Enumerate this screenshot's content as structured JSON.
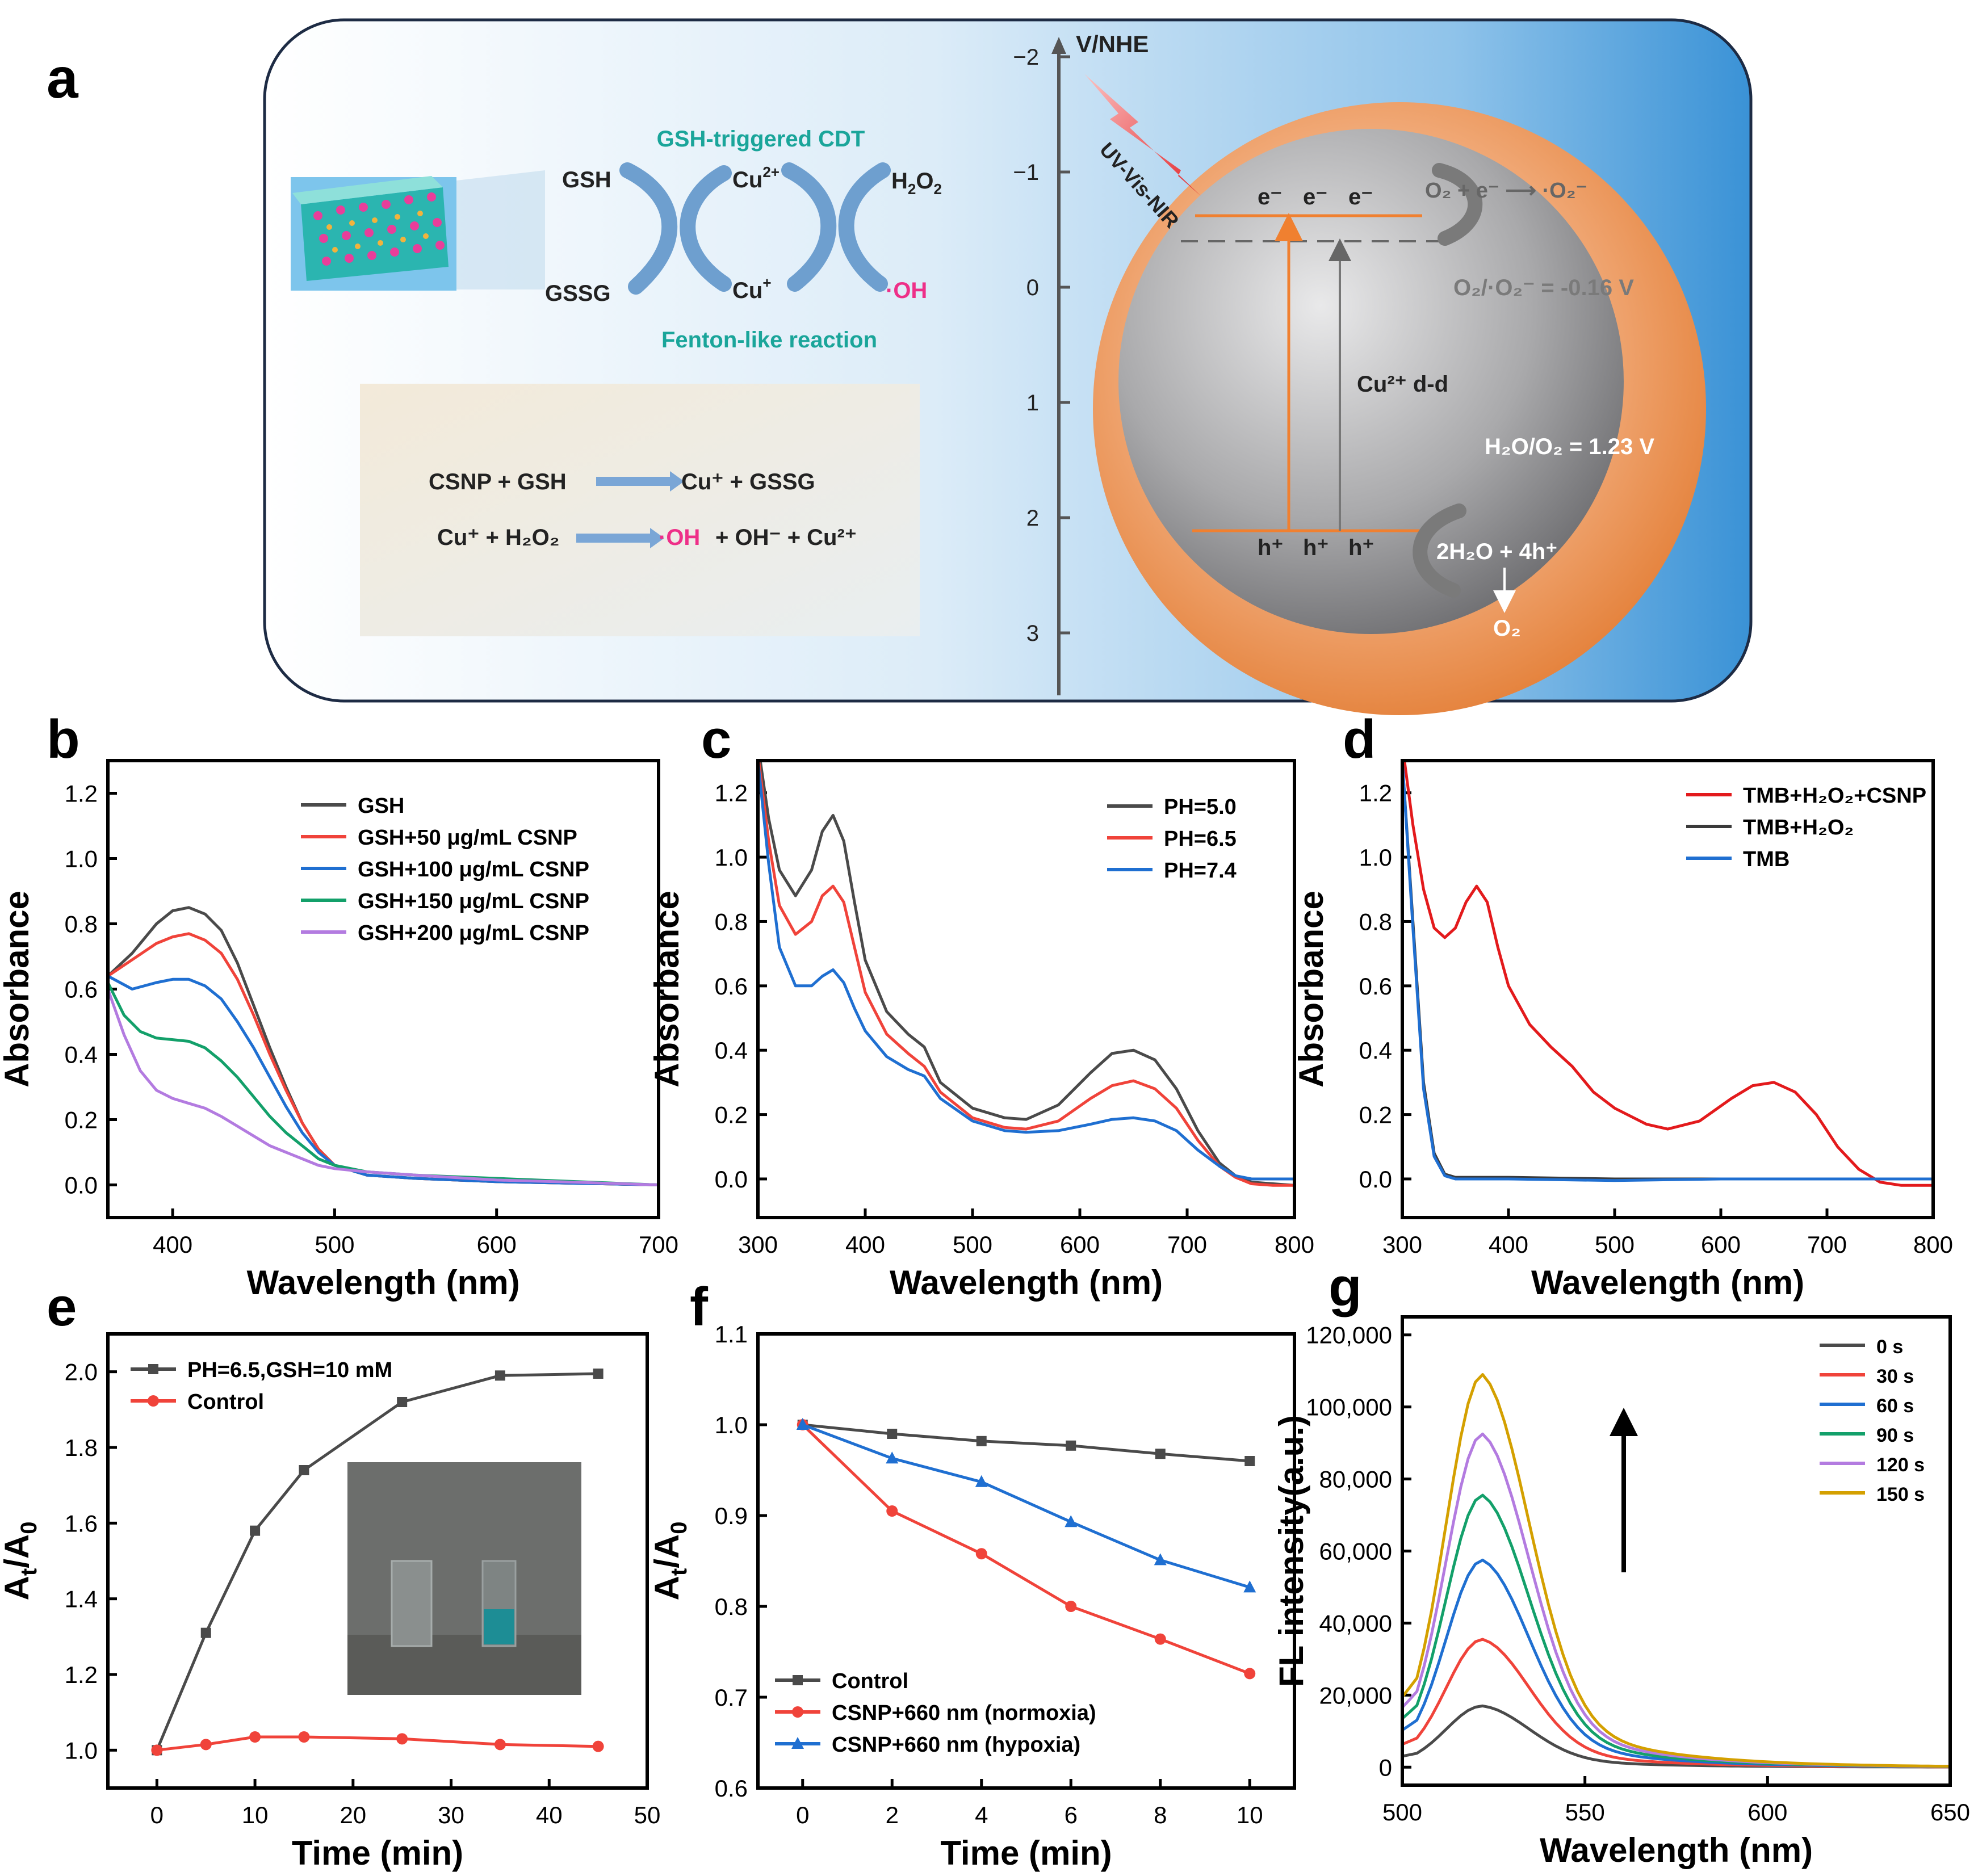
{
  "panel_a": {
    "label": "a",
    "cycle": {
      "title": "GSH-triggered CDT",
      "subtitle": "Fenton-like reaction",
      "gsh": "GSH",
      "gssg": "GSSG",
      "cu2": "Cu",
      "cu2_sup": "2+",
      "cu1": "Cu",
      "cu1_sup": "+",
      "h2o2_main": "H",
      "h2o2_sub": "2",
      "h2o2_o": "O",
      "h2o2_sub2": "2",
      "oh": "·OH"
    },
    "equations": {
      "eq1_left": "CSNP + GSH",
      "eq1_right": "Cu⁺ + GSSG",
      "eq2_left": "Cu⁺ + H₂O₂",
      "eq2_oh": "·OH",
      "eq2_right": " + OH⁻ + Cu²⁺"
    },
    "energy": {
      "axis_title": "V/NHE",
      "ticks": [
        "-2",
        "-1",
        "0",
        "1",
        "2",
        "3"
      ],
      "light": "UV-Vis-NIR",
      "electrons": [
        "e⁻",
        "e⁻",
        "e⁻"
      ],
      "holes": [
        "h⁺",
        "h⁺",
        "h⁺"
      ],
      "transition": "Cu²⁺ d-d",
      "reduction": "O₂ + e⁻ ⟶ ·O₂⁻",
      "o2_level": "O₂/·O₂⁻ = -0.16 V",
      "h2o_level": "H₂O/O₂ = 1.23 V",
      "oxidation": "2H₂O + 4h⁺",
      "o2": "O₂"
    }
  },
  "chart_data": [
    {
      "id": "b",
      "type": "line",
      "label": "b",
      "xlabel": "Wavelength (nm)",
      "ylabel": "Absorbance",
      "xlim": [
        360,
        700
      ],
      "ylim": [
        -0.1,
        1.3
      ],
      "xticks": [
        400,
        500,
        600,
        700
      ],
      "yticks": [
        0.0,
        0.2,
        0.4,
        0.6,
        0.8,
        1.0,
        1.2
      ],
      "ytick_labels": [
        "0.0",
        "0.2",
        "0.4",
        "0.6",
        "0.8",
        "1.0",
        "1.2"
      ],
      "legend_position": "top-right",
      "series": [
        {
          "name": "GSH",
          "color": "#4a4a4a",
          "x": [
            360,
            375,
            390,
            400,
            410,
            420,
            430,
            440,
            450,
            460,
            470,
            480,
            490,
            500,
            520,
            550,
            600,
            650,
            700
          ],
          "y": [
            0.64,
            0.71,
            0.8,
            0.84,
            0.85,
            0.83,
            0.78,
            0.68,
            0.55,
            0.42,
            0.3,
            0.19,
            0.11,
            0.06,
            0.03,
            0.02,
            0.01,
            0.005,
            0.0
          ]
        },
        {
          "name": "GSH+50 μg/mL CSNP",
          "color": "#f0433a",
          "x": [
            360,
            375,
            390,
            400,
            410,
            420,
            430,
            440,
            450,
            460,
            470,
            480,
            490,
            500,
            520,
            550,
            600,
            650,
            700
          ],
          "y": [
            0.64,
            0.69,
            0.74,
            0.76,
            0.77,
            0.75,
            0.71,
            0.63,
            0.52,
            0.4,
            0.29,
            0.19,
            0.11,
            0.06,
            0.03,
            0.02,
            0.01,
            0.005,
            0.0
          ]
        },
        {
          "name": "GSH+100 μg/mL CSNP",
          "color": "#1f6fd1",
          "x": [
            360,
            375,
            390,
            400,
            410,
            420,
            430,
            440,
            450,
            460,
            470,
            480,
            490,
            500,
            520,
            550,
            600,
            650,
            700
          ],
          "y": [
            0.64,
            0.6,
            0.62,
            0.63,
            0.63,
            0.61,
            0.57,
            0.5,
            0.42,
            0.33,
            0.24,
            0.16,
            0.1,
            0.06,
            0.03,
            0.02,
            0.01,
            0.005,
            0.0
          ]
        },
        {
          "name": "GSH+150 μg/mL CSNP",
          "color": "#13a06a",
          "x": [
            360,
            370,
            380,
            390,
            400,
            410,
            420,
            430,
            440,
            450,
            460,
            470,
            480,
            490,
            500,
            520,
            550,
            600,
            650,
            700
          ],
          "y": [
            0.62,
            0.52,
            0.47,
            0.45,
            0.445,
            0.44,
            0.42,
            0.38,
            0.33,
            0.27,
            0.21,
            0.16,
            0.12,
            0.08,
            0.06,
            0.04,
            0.03,
            0.02,
            0.01,
            0.0
          ]
        },
        {
          "name": "GSH+200 μg/mL CSNP",
          "color": "#b37be0",
          "x": [
            360,
            370,
            380,
            390,
            400,
            410,
            420,
            430,
            440,
            450,
            460,
            470,
            480,
            490,
            500,
            520,
            550,
            600,
            650,
            700
          ],
          "y": [
            0.6,
            0.46,
            0.35,
            0.29,
            0.265,
            0.25,
            0.235,
            0.21,
            0.18,
            0.15,
            0.12,
            0.1,
            0.08,
            0.06,
            0.05,
            0.04,
            0.03,
            0.015,
            0.008,
            0.0
          ]
        }
      ]
    },
    {
      "id": "c",
      "type": "line",
      "label": "c",
      "xlabel": "Wavelength (nm)",
      "ylabel": "Absorbance",
      "xlim": [
        300,
        800
      ],
      "ylim": [
        -0.12,
        1.3
      ],
      "xticks": [
        300,
        400,
        500,
        600,
        700,
        800
      ],
      "yticks": [
        0.0,
        0.2,
        0.4,
        0.6,
        0.8,
        1.0,
        1.2
      ],
      "ytick_labels": [
        "0.0",
        "0.2",
        "0.4",
        "0.6",
        "0.8",
        "1.0",
        "1.2"
      ],
      "legend_position": "top-right",
      "series": [
        {
          "name": "PH=5.0",
          "color": "#4a4a4a",
          "x": [
            300,
            310,
            320,
            335,
            350,
            360,
            370,
            380,
            390,
            400,
            420,
            440,
            455,
            470,
            500,
            530,
            550,
            580,
            610,
            630,
            650,
            670,
            690,
            710,
            730,
            745,
            760,
            780,
            800
          ],
          "y": [
            1.35,
            1.12,
            0.96,
            0.88,
            0.96,
            1.08,
            1.13,
            1.05,
            0.86,
            0.68,
            0.52,
            0.45,
            0.41,
            0.3,
            0.22,
            0.19,
            0.185,
            0.23,
            0.33,
            0.39,
            0.4,
            0.37,
            0.28,
            0.15,
            0.05,
            0.01,
            -0.01,
            -0.015,
            -0.02
          ]
        },
        {
          "name": "PH=6.5",
          "color": "#f0433a",
          "x": [
            300,
            310,
            320,
            335,
            350,
            360,
            370,
            380,
            390,
            400,
            420,
            440,
            455,
            470,
            500,
            530,
            550,
            580,
            610,
            630,
            650,
            670,
            690,
            710,
            730,
            745,
            760,
            780,
            800
          ],
          "y": [
            1.32,
            1.05,
            0.85,
            0.76,
            0.8,
            0.88,
            0.91,
            0.86,
            0.72,
            0.58,
            0.45,
            0.39,
            0.35,
            0.27,
            0.19,
            0.16,
            0.155,
            0.18,
            0.25,
            0.29,
            0.305,
            0.28,
            0.22,
            0.12,
            0.04,
            0.005,
            -0.015,
            -0.02,
            -0.02
          ]
        },
        {
          "name": "PH=7.4",
          "color": "#1f6fd1",
          "x": [
            300,
            310,
            320,
            335,
            350,
            360,
            370,
            380,
            390,
            400,
            420,
            440,
            455,
            470,
            500,
            530,
            550,
            580,
            610,
            630,
            650,
            670,
            690,
            710,
            730,
            745,
            760,
            780,
            800
          ],
          "y": [
            1.3,
            0.98,
            0.72,
            0.6,
            0.6,
            0.63,
            0.65,
            0.61,
            0.53,
            0.46,
            0.38,
            0.34,
            0.32,
            0.25,
            0.18,
            0.15,
            0.145,
            0.15,
            0.17,
            0.185,
            0.19,
            0.18,
            0.15,
            0.09,
            0.04,
            0.01,
            0.0,
            0.0,
            0.0
          ]
        }
      ]
    },
    {
      "id": "d",
      "type": "line",
      "label": "d",
      "xlabel": "Wavelength (nm)",
      "ylabel": "Absorbance",
      "xlim": [
        300,
        800
      ],
      "ylim": [
        -0.12,
        1.3
      ],
      "xticks": [
        300,
        400,
        500,
        600,
        700,
        800
      ],
      "yticks": [
        0.0,
        0.2,
        0.4,
        0.6,
        0.8,
        1.0,
        1.2
      ],
      "ytick_labels": [
        "0.0",
        "0.2",
        "0.4",
        "0.6",
        "0.8",
        "1.0",
        "1.2"
      ],
      "legend_position": "top-right",
      "series": [
        {
          "name": "TMB+H₂O₂+CSNP",
          "color": "#e31a1c",
          "x": [
            300,
            310,
            320,
            330,
            340,
            350,
            360,
            370,
            380,
            390,
            400,
            420,
            440,
            460,
            480,
            500,
            530,
            550,
            580,
            610,
            630,
            650,
            670,
            690,
            710,
            730,
            750,
            770,
            800
          ],
          "y": [
            1.35,
            1.1,
            0.9,
            0.78,
            0.75,
            0.78,
            0.86,
            0.91,
            0.86,
            0.72,
            0.6,
            0.48,
            0.41,
            0.35,
            0.27,
            0.22,
            0.17,
            0.155,
            0.18,
            0.25,
            0.29,
            0.3,
            0.27,
            0.2,
            0.1,
            0.03,
            -0.01,
            -0.02,
            -0.02
          ]
        },
        {
          "name": "TMB+H₂O₂",
          "color": "#3a3a3a",
          "x": [
            300,
            310,
            320,
            330,
            340,
            350,
            400,
            500,
            600,
            700,
            800
          ],
          "y": [
            1.3,
            0.8,
            0.3,
            0.08,
            0.015,
            0.005,
            0.005,
            0.0,
            0.0,
            0.0,
            0.0
          ]
        },
        {
          "name": "TMB",
          "color": "#1f6fd1",
          "x": [
            300,
            310,
            320,
            330,
            340,
            350,
            400,
            500,
            600,
            700,
            800
          ],
          "y": [
            1.3,
            0.78,
            0.28,
            0.07,
            0.01,
            0.0,
            0.0,
            -0.005,
            0.0,
            0.0,
            0.0
          ]
        }
      ]
    },
    {
      "id": "e",
      "type": "line",
      "label": "e",
      "xlabel": "Time (min)",
      "ylabel": "At/A0",
      "ylabel_parts": [
        "A",
        "t",
        "/A",
        "0"
      ],
      "xlim": [
        -5,
        50
      ],
      "ylim": [
        0.9,
        2.1
      ],
      "xticks": [
        0,
        10,
        20,
        30,
        40,
        50
      ],
      "yticks": [
        1.0,
        1.2,
        1.4,
        1.6,
        1.8,
        2.0
      ],
      "ytick_labels": [
        "1.0",
        "1.2",
        "1.4",
        "1.6",
        "1.8",
        "2.0"
      ],
      "legend_position": "top-left",
      "series": [
        {
          "name": "PH=6.5,GSH=10 mM",
          "color": "#4a4a4a",
          "marker": "square",
          "x": [
            0,
            5,
            10,
            15,
            25,
            35,
            45
          ],
          "y": [
            1.0,
            1.31,
            1.58,
            1.74,
            1.92,
            1.99,
            1.995
          ]
        },
        {
          "name": "Control",
          "color": "#f0433a",
          "marker": "circle",
          "x": [
            0,
            5,
            10,
            15,
            25,
            35,
            45
          ],
          "y": [
            1.0,
            1.015,
            1.035,
            1.035,
            1.03,
            1.015,
            1.01
          ]
        }
      ]
    },
    {
      "id": "f",
      "type": "line",
      "label": "f",
      "xlabel": "Time (min)",
      "ylabel": "At/A0",
      "ylabel_parts": [
        "A",
        "t",
        "/A",
        "0"
      ],
      "xlim": [
        -1,
        11
      ],
      "ylim": [
        0.6,
        1.1
      ],
      "xticks": [
        0,
        2,
        4,
        6,
        8,
        10
      ],
      "yticks": [
        0.6,
        0.7,
        0.8,
        0.9,
        1.0,
        1.1
      ],
      "ytick_labels": [
        "0.6",
        "0.7",
        "0.8",
        "0.9",
        "1.0",
        "1.1"
      ],
      "legend_position": "bottom-left",
      "series": [
        {
          "name": "Control",
          "color": "#4a4a4a",
          "marker": "square",
          "x": [
            0,
            2,
            4,
            6,
            8,
            10
          ],
          "y": [
            1.0,
            0.99,
            0.982,
            0.977,
            0.968,
            0.96
          ]
        },
        {
          "name": "CSNP+660 nm (normoxia)",
          "color": "#f0433a",
          "marker": "circle",
          "x": [
            0,
            2,
            4,
            6,
            8,
            10
          ],
          "y": [
            1.0,
            0.905,
            0.858,
            0.8,
            0.764,
            0.726
          ]
        },
        {
          "name": "CSNP+660 nm (hypoxia)",
          "color": "#1f6fd1",
          "marker": "triangle",
          "x": [
            0,
            2,
            4,
            6,
            8,
            10
          ],
          "y": [
            1.0,
            0.963,
            0.937,
            0.893,
            0.851,
            0.821
          ]
        }
      ]
    },
    {
      "id": "g",
      "type": "line",
      "label": "g",
      "xlabel": "Wavelength (nm)",
      "ylabel": "FL intensity(a.u.)",
      "xlim": [
        500,
        650
      ],
      "ylim": [
        -5000,
        125000
      ],
      "xticks": [
        500,
        550,
        600,
        650
      ],
      "yticks": [
        0,
        20000,
        40000,
        60000,
        80000,
        100000,
        120000
      ],
      "ytick_labels": [
        "0",
        "20,000",
        "40,000",
        "60,000",
        "80,000",
        "100,000",
        "120,000"
      ],
      "legend_position": "top-right",
      "series": [
        {
          "name": "0 s",
          "color": "#4a4a4a",
          "peak": 17000
        },
        {
          "name": "30 s",
          "color": "#f0433a",
          "peak": 35500
        },
        {
          "name": "60 s",
          "color": "#1f6fd1",
          "peak": 57500
        },
        {
          "name": "90 s",
          "color": "#13a06a",
          "peak": 75500
        },
        {
          "name": "120 s",
          "color": "#b37be0",
          "peak": 92500
        },
        {
          "name": "150 s",
          "color": "#d4a000",
          "peak": 109000
        }
      ]
    }
  ]
}
